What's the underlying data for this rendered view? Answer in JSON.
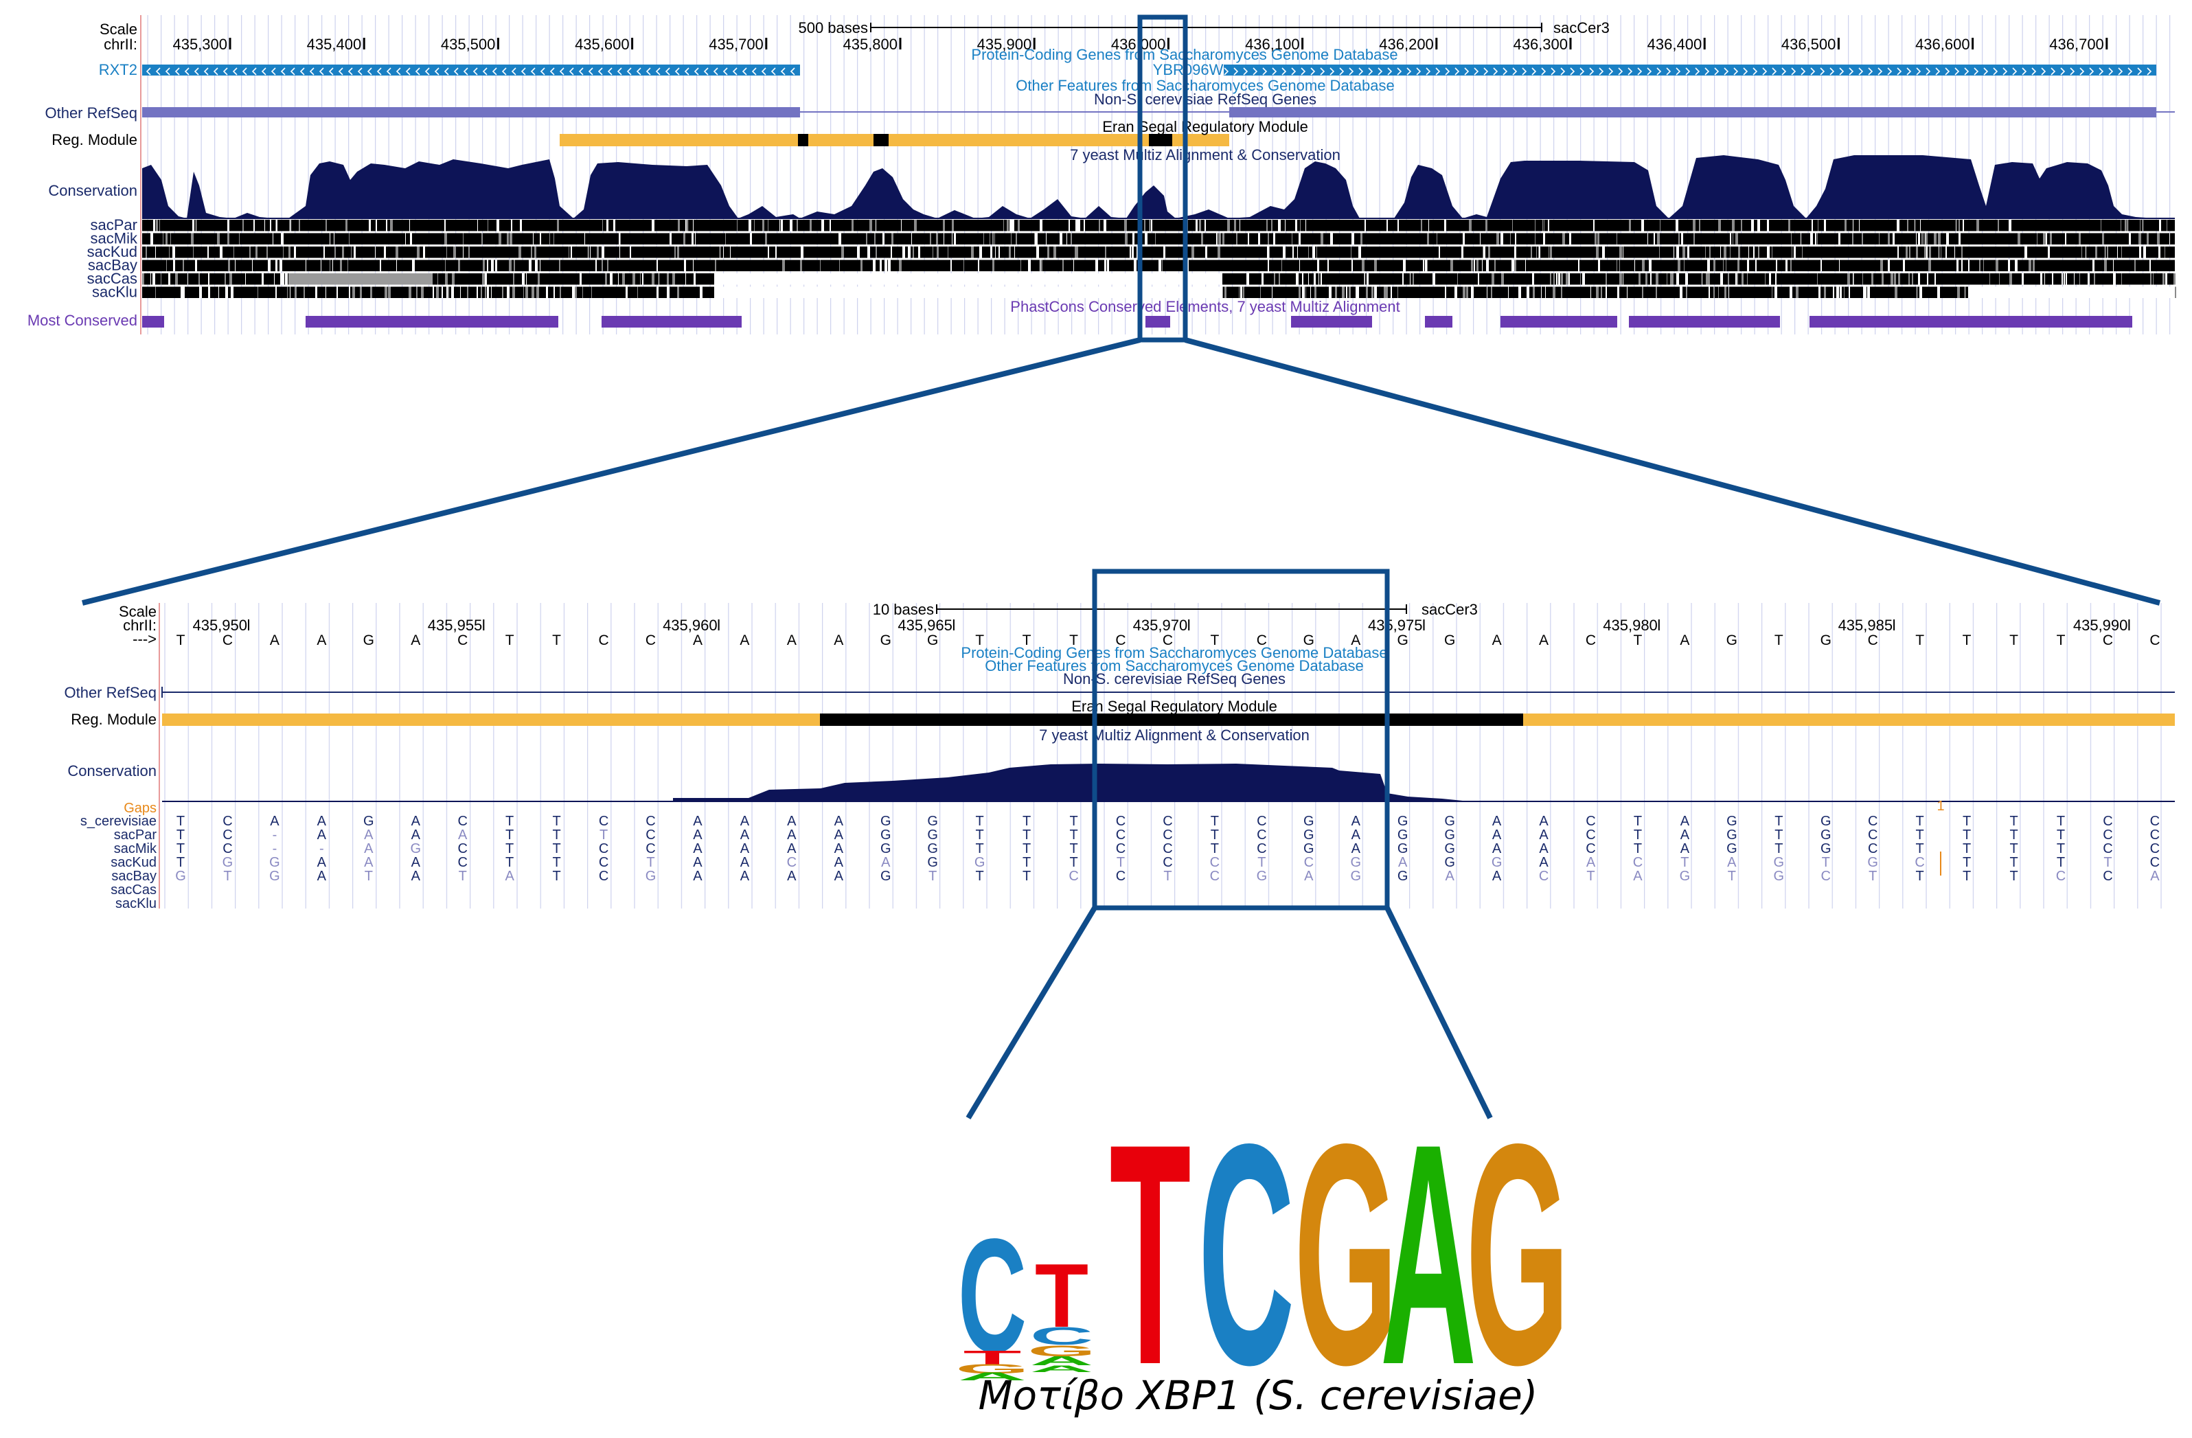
{
  "top": {
    "scale_label": "Scale",
    "chrom_label": "chrII:",
    "scalebar_text": "500 bases",
    "assembly": "sacCer3",
    "ticks": [
      "435,300",
      "435,400",
      "435,500",
      "435,600",
      "435,700",
      "435,800",
      "435,900",
      "436,000",
      "436,100",
      "436,200",
      "436,300",
      "436,400",
      "436,500",
      "436,600",
      "436,700"
    ],
    "gene_left": "RXT2",
    "gene_right": "YBR096W",
    "track_protein": "Protein-Coding Genes from Saccharomyces Genome Database",
    "track_other_features": "Other Features from Saccharomyces Genome Database",
    "track_nonsc": "Non-S. cerevisiae RefSeq Genes",
    "other_refseq_label": "Other RefSeq",
    "reg_module_label": "Reg. Module",
    "reg_module_track": "Eran Segal Regulatory Module",
    "multiz_track": "7 yeast Multiz Alignment & Conservation",
    "conservation_label": "Conservation",
    "species": [
      "sacPar",
      "sacMik",
      "sacKud",
      "sacBay",
      "sacCas",
      "sacKlu"
    ],
    "phastcons_track": "PhastCons Conserved Elements, 7 yeast Multiz Alignment",
    "most_conserved_label": "Most Conserved"
  },
  "zoom": {
    "scale_label": "Scale",
    "chrom_label": "chrII:",
    "strand_label": "--->",
    "scalebar_text": "10 bases",
    "assembly": "sacCer3",
    "ticks": [
      "435,950",
      "435,955",
      "435,960",
      "435,965",
      "435,970",
      "435,975",
      "435,980",
      "435,985",
      "435,990"
    ],
    "reference_sequence": "TCAAGACTTCCAAAAGGTTTCCTCGAGGAACTAGTGCTTTTCCAA",
    "track_protein": "Protein-Coding Genes from Saccharomyces Genome Database",
    "track_other_features": "Other Features from Saccharomyces Genome Database",
    "track_nonsc": "Non-S. cerevisiae RefSeq Genes",
    "other_refseq_label": "Other RefSeq",
    "reg_module_label": "Reg. Module",
    "reg_module_track": "Eran Segal Regulatory Module",
    "multiz_track": "7 yeast Multiz Alignment & Conservation",
    "conservation_label": "Conservation",
    "gaps_label": "Gaps",
    "gaps_mark": "1",
    "alignment_species": [
      "s_cerevisiae",
      "sacPar",
      "sacMik",
      "sacKud",
      "sacBay",
      "sacCas",
      "sacKlu"
    ],
    "alignment_rows": [
      "TCAAGACTTCCAAAAGGTTTCCTCGAGGAACTAGTGCTTTTCCAA",
      "TC-AAAATTTCAAAAGGTTTCCTCGAGGAACTAGTGCTTTTCCAA",
      "TC--AGCTTCCAAAAGGTTTCCTCGAGGAACTAGTGCTTTTCCAA",
      "TGGAAACTTCTAACAAGGTTTCCTCGAGGAACTAGTGCTTTTCCAA",
      "GTGATATATCGAAAAGTTTCCTCGAGGAACTAGTGCTTTTCCAA",
      "",
      ""
    ]
  },
  "logo": {
    "letters": [
      "C",
      "T",
      "T",
      "C",
      "G",
      "A",
      "G"
    ],
    "colors": {
      "T": "#e8000b",
      "C": "#1a80c4",
      "G": "#d4870e",
      "A": "#1ab000"
    },
    "caption": "Μοτίβο XBP1 (S. cerevisiae)"
  }
}
